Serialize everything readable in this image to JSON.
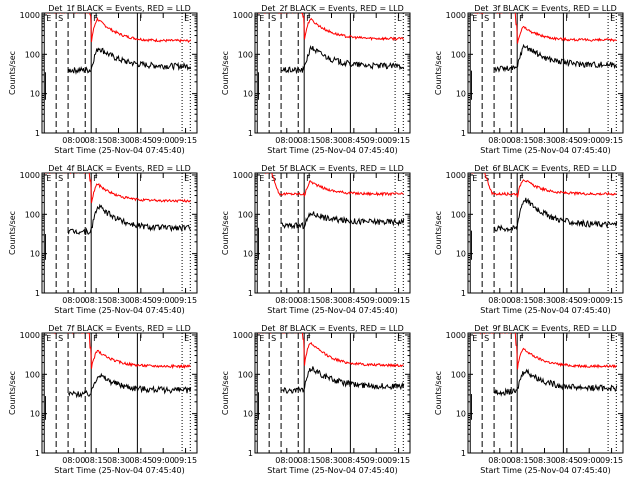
{
  "figure": {
    "type": "grid of log-scale time-series panels",
    "rows": 3,
    "cols": 3
  },
  "shared": {
    "ylabel": "Counts/sec",
    "xlabel": "Start Time (25-Nov-04 07:45:40)",
    "xticks": [
      "08:00",
      "08:15",
      "08:30",
      "08:45",
      "09:00",
      "09:15"
    ],
    "yticks": [
      "1",
      "10",
      "100",
      "1000"
    ],
    "colors": {
      "events": "#000000",
      "lld": "#ff0000",
      "axes": "#000000"
    }
  },
  "chart_data": [
    {
      "title": "Det_1f BLACK = Events, RED = LLD",
      "markers": [
        "E",
        "S",
        "F",
        "I",
        "E"
      ],
      "red_base": 220,
      "black_base": 50,
      "peak_red": 800,
      "peak_black": 150,
      "red_sat": true
    },
    {
      "title": "Det_2f BLACK = Events, RED = LLD",
      "markers": [
        "E",
        "S",
        "F",
        "I",
        "L"
      ],
      "red_base": 250,
      "black_base": 50,
      "peak_red": 800,
      "peak_black": 150,
      "red_sat": true
    },
    {
      "title": "Det_3f BLACK = Events, RED = LLD",
      "markers": [
        "E",
        "S",
        "F",
        "I",
        "E"
      ],
      "red_base": 230,
      "black_base": 55,
      "peak_red": 500,
      "peak_black": 170,
      "red_sat": true
    },
    {
      "title": "Det_4f BLACK = Events, RED = LLD",
      "markers": [
        "E",
        "S",
        "F",
        "I",
        "E"
      ],
      "red_base": 220,
      "black_base": 45,
      "peak_red": 600,
      "peak_black": 160,
      "red_sat": true
    },
    {
      "title": "Det_5f BLACK = Events, RED = LLD",
      "markers": [
        "E",
        "S",
        "F",
        "I",
        "L"
      ],
      "red_base": 330,
      "black_base": 65,
      "peak_red": 700,
      "peak_black": 110,
      "red_sat": false
    },
    {
      "title": "Det_6f BLACK = Events, RED = LLD",
      "markers": [
        "E",
        "S",
        "F",
        "I",
        "L"
      ],
      "red_base": 330,
      "black_base": 55,
      "peak_red": 800,
      "peak_black": 250,
      "red_sat": false
    },
    {
      "title": "Det_7f BLACK = Events, RED = LLD",
      "markers": [
        "E",
        "S",
        "F",
        "I",
        "E"
      ],
      "red_base": 160,
      "black_base": 40,
      "peak_red": 400,
      "peak_black": 100,
      "red_sat": true
    },
    {
      "title": "Det_8f BLACK = Events, RED = LLD",
      "markers": [
        "E",
        "S",
        "F",
        "I",
        "E"
      ],
      "red_base": 170,
      "black_base": 50,
      "peak_red": 650,
      "peak_black": 150,
      "red_sat": true
    },
    {
      "title": "Det_9f BLACK = Events, RED = LLD",
      "markers": [
        "E",
        "S",
        "F",
        "I",
        "E"
      ],
      "red_base": 160,
      "black_base": 45,
      "peak_red": 450,
      "peak_black": 130,
      "red_sat": true
    }
  ]
}
